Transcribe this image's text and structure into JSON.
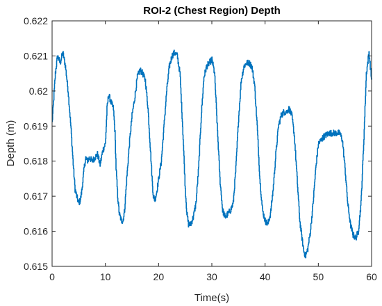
{
  "chart_data": {
    "type": "line",
    "title": "ROI-2 (Chest Region) Depth",
    "xlabel": "Time(s)",
    "ylabel": "Depth (m)",
    "xlim": [
      0,
      60
    ],
    "ylim": [
      0.615,
      0.622
    ],
    "xticks": [
      0,
      10,
      20,
      30,
      40,
      50,
      60
    ],
    "xtick_labels": [
      "0",
      "10",
      "20",
      "30",
      "40",
      "50",
      "60"
    ],
    "yticks": [
      0.615,
      0.616,
      0.617,
      0.618,
      0.619,
      0.62,
      0.621,
      0.622
    ],
    "ytick_labels": [
      "0.615",
      "0.616",
      "0.617",
      "0.618",
      "0.619",
      "0.62",
      "0.621",
      "0.622"
    ],
    "grid": false,
    "legend": "none",
    "color": "#0072BD",
    "series": [
      {
        "x": [
          0,
          0.3,
          0.6,
          1,
          1.5,
          2,
          2.5,
          3,
          3.5,
          4,
          4.3,
          4.6,
          5,
          5.3,
          5.6,
          6,
          6.3,
          6.6,
          7,
          7.5,
          8,
          8.5,
          9,
          9.5,
          10,
          10.3,
          10.6,
          11,
          11.5,
          11.8,
          12,
          12.3,
          12.6,
          13,
          13.3,
          13.6,
          14,
          14.5,
          15,
          15.5,
          16,
          16.5,
          17,
          17.5,
          18,
          18.5,
          18.8,
          19,
          19.3,
          19.6,
          20,
          20.5,
          21,
          21.5,
          22,
          22.5,
          23,
          23.5,
          24,
          24.5,
          25,
          25.3,
          25.6,
          26,
          26.5,
          27,
          27.5,
          28,
          28.5,
          29,
          29.5,
          30,
          30.5,
          31,
          31.5,
          32,
          32.5,
          33,
          33.5,
          34,
          34.5,
          35,
          35.5,
          36,
          36.5,
          37,
          37.5,
          38,
          38.5,
          39,
          39.5,
          40,
          40.5,
          41,
          41.5,
          42,
          42.5,
          43,
          43.5,
          44,
          44.5,
          45,
          45.5,
          46,
          46.5,
          47,
          47.3,
          47.6,
          48,
          48.5,
          49,
          49.5,
          50,
          51,
          52,
          53,
          54,
          54.5,
          55,
          55.5,
          56,
          56.5,
          57,
          57.5,
          58,
          58.5,
          59,
          59.5,
          60
        ],
        "y": [
          0.6191,
          0.6198,
          0.6205,
          0.621,
          0.6208,
          0.6211,
          0.6207,
          0.62,
          0.619,
          0.6178,
          0.6172,
          0.617,
          0.6168,
          0.6169,
          0.6172,
          0.6178,
          0.6181,
          0.618,
          0.6181,
          0.618,
          0.6181,
          0.6182,
          0.6179,
          0.6183,
          0.6185,
          0.6195,
          0.6199,
          0.6197,
          0.6195,
          0.6188,
          0.6178,
          0.617,
          0.6165,
          0.6163,
          0.6163,
          0.6166,
          0.6175,
          0.6185,
          0.6193,
          0.6198,
          0.6204,
          0.6206,
          0.6205,
          0.6203,
          0.6195,
          0.6182,
          0.6174,
          0.617,
          0.6169,
          0.6171,
          0.6175,
          0.618,
          0.619,
          0.62,
          0.6207,
          0.621,
          0.6211,
          0.621,
          0.6205,
          0.619,
          0.6172,
          0.6165,
          0.6162,
          0.6162,
          0.6164,
          0.6168,
          0.6178,
          0.6193,
          0.6204,
          0.6207,
          0.6208,
          0.6209,
          0.6205,
          0.619,
          0.6175,
          0.6166,
          0.6164,
          0.6165,
          0.6166,
          0.6168,
          0.6178,
          0.6192,
          0.6203,
          0.6207,
          0.6208,
          0.6208,
          0.6207,
          0.6202,
          0.619,
          0.6175,
          0.6166,
          0.6163,
          0.6162,
          0.6165,
          0.6172,
          0.6182,
          0.619,
          0.6193,
          0.6194,
          0.6194,
          0.6195,
          0.6193,
          0.6187,
          0.6175,
          0.6163,
          0.6157,
          0.6154,
          0.6153,
          0.6155,
          0.616,
          0.6168,
          0.6178,
          0.6185,
          0.6187,
          0.6188,
          0.6188,
          0.6188,
          0.6186,
          0.6178,
          0.6168,
          0.6162,
          0.6159,
          0.6158,
          0.616,
          0.6168,
          0.6185,
          0.6205,
          0.6211,
          0.6203
        ]
      }
    ]
  }
}
